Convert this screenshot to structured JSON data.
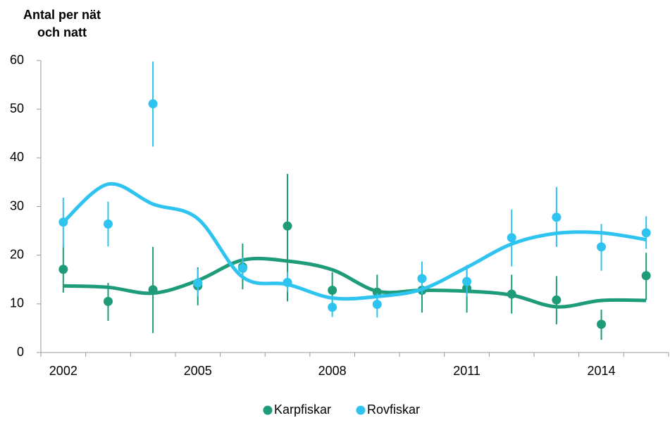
{
  "chart_data": {
    "type": "errorbar-trend",
    "y_label_lines": [
      "Antal per nät",
      "och natt"
    ],
    "categories": [
      "2002",
      null,
      null,
      "2005",
      null,
      null,
      "2008",
      null,
      null,
      "2011",
      null,
      null,
      "2014",
      null
    ],
    "ylim": [
      0,
      60
    ],
    "yticks": [
      0,
      10,
      20,
      30,
      40,
      50,
      60
    ],
    "legend": "bottom",
    "series": [
      {
        "name": "Karpfiskar",
        "color": "#1e9b79",
        "values": [
          17.1,
          10.5,
          12.9,
          13.7,
          17.6,
          26.0,
          12.8,
          12.4,
          12.8,
          13.2,
          12.0,
          10.8,
          5.8,
          15.8
        ],
        "lower": [
          12.3,
          6.5,
          4.0,
          9.7,
          13.0,
          10.5,
          9.0,
          9.0,
          8.2,
          8.2,
          8.0,
          5.8,
          2.6,
          10.8
        ],
        "upper": [
          22.0,
          14.3,
          21.7,
          17.5,
          22.4,
          36.7,
          16.5,
          16.0,
          17.0,
          17.6,
          16.0,
          15.7,
          8.8,
          20.5
        ],
        "trend": [
          13.7,
          13.4,
          12.2,
          14.8,
          19.0,
          18.8,
          17.0,
          12.6,
          12.8,
          12.6,
          11.8,
          9.4,
          10.7,
          10.7
        ]
      },
      {
        "name": "Rovfiskar",
        "color": "#2ec4ef",
        "values": [
          26.8,
          26.4,
          51.1,
          14.3,
          17.3,
          14.4,
          9.3,
          9.9,
          15.2,
          14.6,
          23.6,
          27.8,
          21.7,
          24.6
        ],
        "lower": [
          21.5,
          21.8,
          42.3,
          11.5,
          15.3,
          12.5,
          7.3,
          7.2,
          12.0,
          11.5,
          17.7,
          21.7,
          16.8,
          21.3
        ],
        "upper": [
          31.8,
          31.0,
          59.8,
          17.2,
          19.5,
          16.5,
          11.3,
          12.2,
          18.7,
          18.0,
          29.4,
          34.0,
          26.4,
          28.0
        ],
        "trend": [
          26.8,
          34.6,
          30.5,
          27.5,
          15.5,
          14.0,
          11.2,
          11.5,
          13.0,
          17.5,
          22.3,
          24.5,
          24.6,
          23.2
        ]
      }
    ]
  }
}
